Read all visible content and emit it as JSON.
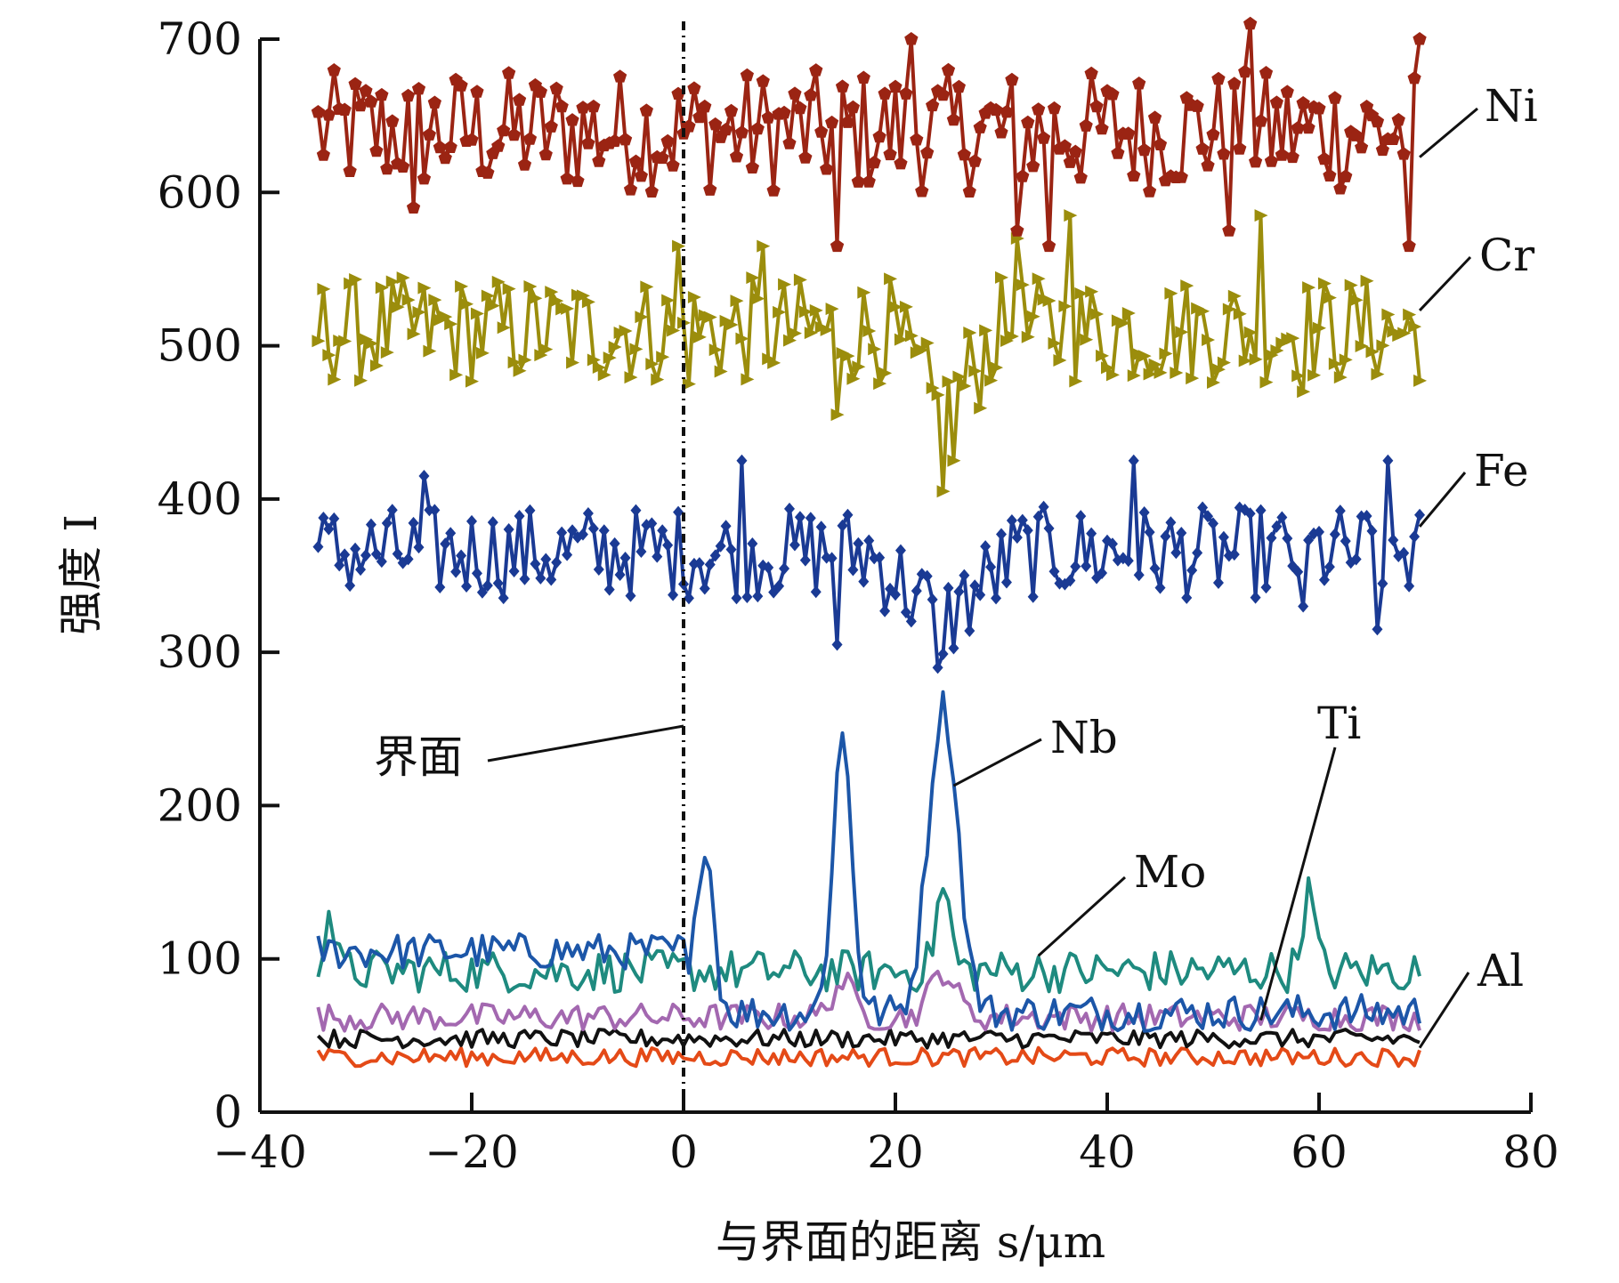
{
  "chart_data": {
    "type": "line",
    "title": "",
    "xlabel": "与界面的距离 s/μm",
    "ylabel": "强度 I",
    "xlim": [
      -40,
      80
    ],
    "ylim": [
      0,
      700
    ],
    "x_ticks": [
      "−40",
      "−20",
      "0",
      "20",
      "40",
      "60",
      "80"
    ],
    "x_tick_values": [
      -40,
      -20,
      0,
      20,
      40,
      60,
      80
    ],
    "y_ticks": [
      "0",
      "100",
      "200",
      "300",
      "400",
      "500",
      "600",
      "700"
    ],
    "y_tick_values": [
      0,
      100,
      200,
      300,
      400,
      500,
      600,
      700
    ],
    "grid": false,
    "x_range_of_data": [
      -34.5,
      69.5
    ],
    "annotations": [
      {
        "label": "界面",
        "x": 0
      }
    ],
    "series": [
      {
        "name": "Ni",
        "color": "#9b2413",
        "marker": "pentagon",
        "baseline": 640,
        "amplitude": 40,
        "spikes": [
          [
            -25.5,
            590
          ],
          [
            21.5,
            700
          ],
          [
            31.5,
            575
          ],
          [
            34.5,
            565
          ],
          [
            14.5,
            565
          ],
          [
            53.5,
            710
          ],
          [
            51.5,
            575
          ],
          [
            68.5,
            565
          ],
          [
            69.5,
            700
          ]
        ]
      },
      {
        "name": "Cr",
        "color": "#9b8d0c",
        "marker": "triangle",
        "baseline": 510,
        "amplitude": 35,
        "spikes": [
          [
            -0.5,
            565
          ],
          [
            0.5,
            475
          ],
          [
            7.5,
            565
          ],
          [
            14.5,
            455
          ],
          [
            24.5,
            405
          ],
          [
            25.5,
            425
          ],
          [
            31.5,
            570
          ],
          [
            36.5,
            585
          ],
          [
            54.5,
            585
          ],
          [
            58.5,
            470
          ]
        ],
        "dip": {
          "x": 24.5,
          "depth": 60,
          "width": 5
        }
      },
      {
        "name": "Fe",
        "color": "#1a3a94",
        "marker": "diamond",
        "baseline": 365,
        "amplitude": 30,
        "spikes": [
          [
            -24.5,
            415
          ],
          [
            5.5,
            425
          ],
          [
            14.5,
            305
          ],
          [
            24.0,
            290
          ],
          [
            42.5,
            425
          ],
          [
            65.5,
            315
          ],
          [
            66.5,
            425
          ],
          [
            58.5,
            330
          ]
        ],
        "dip": {
          "x": 24.5,
          "depth": 45,
          "width": 7
        }
      },
      {
        "name": "Nb",
        "color": "#1c56a8",
        "marker": "none",
        "baseline_by_region": [
          [
            -34.5,
            0,
            105
          ],
          [
            0,
            70,
            65
          ]
        ],
        "amplitude": 12,
        "peaks": [
          [
            2,
            178,
            0.8
          ],
          [
            15,
            245,
            0.9
          ],
          [
            24.5,
            265,
            1.4
          ]
        ]
      },
      {
        "name": "Mo",
        "color": "#1e8a7f",
        "marker": "none",
        "baseline": 92,
        "amplitude": 14,
        "peaks": [
          [
            -33.5,
            132,
            0.5
          ],
          [
            24.5,
            145,
            0.7
          ],
          [
            59,
            143,
            0.6
          ]
        ]
      },
      {
        "name": "Ti",
        "color": "#a368b0",
        "marker": "none",
        "baseline": 62,
        "amplitude": 9,
        "peaks": [
          [
            15,
            85,
            1.0
          ],
          [
            24.5,
            92,
            1.2
          ]
        ]
      },
      {
        "name": "",
        "color": "#111111",
        "marker": "none",
        "baseline": 48,
        "amplitude": 6
      },
      {
        "name": "Al",
        "color": "#e44a17",
        "marker": "none",
        "baseline": 36,
        "amplitude": 6
      }
    ],
    "series_labels": [
      {
        "text": "Ni",
        "anchor_x": 69.5,
        "anchor_y": 623
      },
      {
        "text": "Cr",
        "anchor_x": 69.5,
        "anchor_y": 523
      },
      {
        "text": "Fe",
        "anchor_x": 69.5,
        "anchor_y": 382
      },
      {
        "text": "Nb",
        "anchor_x": 25.5,
        "anchor_y": 213
      },
      {
        "text": "Mo",
        "anchor_x": 33.5,
        "anchor_y": 102
      },
      {
        "text": "Ti",
        "anchor_x": 54.5,
        "anchor_y": 60
      },
      {
        "text": "Al",
        "anchor_x": 69.5,
        "anchor_y": 42
      }
    ]
  }
}
